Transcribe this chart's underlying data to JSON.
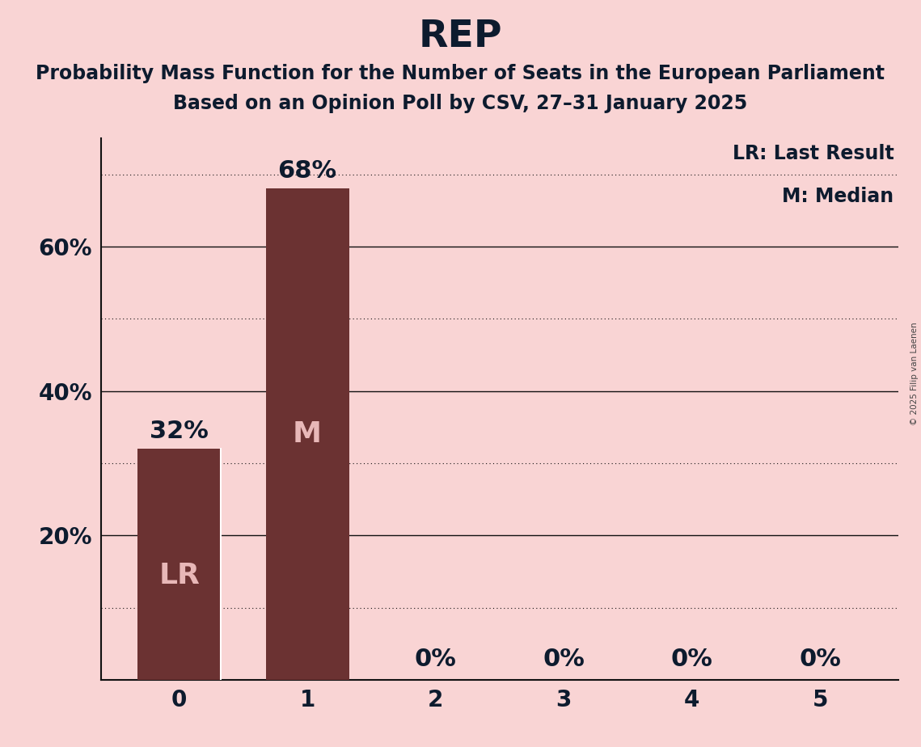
{
  "title": "REP",
  "subtitle_line1": "Probability Mass Function for the Number of Seats in the European Parliament",
  "subtitle_line2": "Based on an Opinion Poll by CSV, 27–31 January 2025",
  "copyright": "© 2025 Filip van Laenen",
  "categories": [
    0,
    1,
    2,
    3,
    4,
    5
  ],
  "values": [
    0.32,
    0.68,
    0.0,
    0.0,
    0.0,
    0.0
  ],
  "bar_color": "#6b3232",
  "background_color": "#f9d4d4",
  "label_color_inside": "#e8b8b8",
  "label_color_outside": "#0d1b2e",
  "lr_bar": 0,
  "median_bar": 1,
  "legend_lr": "LR: Last Result",
  "legend_m": "M: Median",
  "ylim": [
    0,
    0.75
  ],
  "yticks": [
    0.2,
    0.4,
    0.6
  ],
  "ytick_labels": [
    "20%",
    "40%",
    "60%"
  ],
  "solid_gridlines": [
    0.2,
    0.4,
    0.6
  ],
  "dotted_gridlines": [
    0.1,
    0.3,
    0.5,
    0.7
  ],
  "title_fontsize": 34,
  "subtitle_fontsize": 17,
  "tick_fontsize": 20,
  "bar_label_fontsize": 22,
  "annotation_fontsize": 26,
  "legend_fontsize": 17
}
